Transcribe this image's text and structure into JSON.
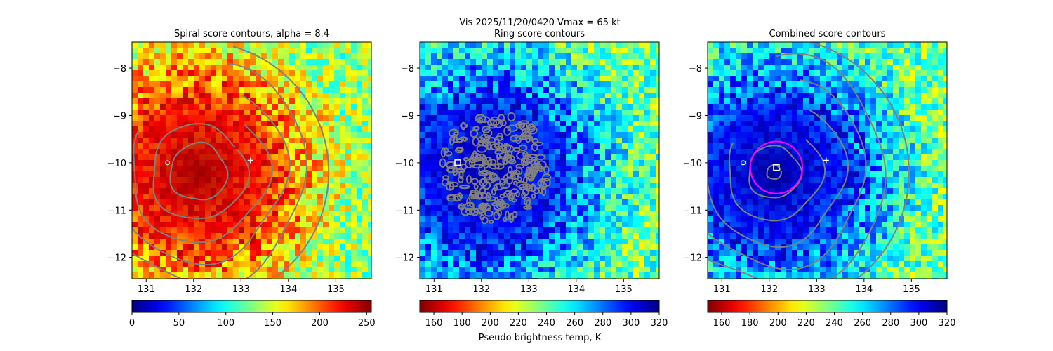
{
  "figure": {
    "suptitle": "Vis  2025/11/20/0420    Vmax = 65 kt",
    "colorbar_label": "Pseudo brightness temp, K"
  },
  "chart_data": [
    {
      "type": "heatmap",
      "title": "Spiral score contours, alpha =  8.4",
      "colormap": "jet",
      "colormap_reversed": false,
      "xlim": [
        130.7,
        135.75
      ],
      "ylim": [
        -12.45,
        -7.45
      ],
      "xticks": [
        131,
        132,
        133,
        134,
        135
      ],
      "yticks": [
        -8,
        -9,
        -10,
        -11,
        -12
      ],
      "colorbar": {
        "min": 0,
        "max": 255,
        "ticks": [
          0,
          50,
          100,
          150,
          200,
          250
        ]
      },
      "center": [
        132.1,
        -10.2
      ],
      "core_radius_deg": 1.6,
      "contour_radii_deg": [
        0.6,
        1.0,
        1.45,
        1.85,
        2.3
      ],
      "contour_color": "#808080",
      "markers": [
        {
          "kind": "plus",
          "x": 133.2,
          "y": -9.95,
          "color": "#ffffff"
        },
        {
          "kind": "circle",
          "x": 131.45,
          "y": -10.0,
          "color": "#ffffff"
        }
      ]
    },
    {
      "type": "heatmap",
      "title": "Ring score contours",
      "colormap": "jet",
      "colormap_reversed": true,
      "xlim": [
        130.7,
        135.75
      ],
      "ylim": [
        -12.45,
        -7.45
      ],
      "xticks": [
        131,
        132,
        133,
        134,
        135
      ],
      "yticks": [
        -8,
        -9,
        -10,
        -11,
        -12
      ],
      "colorbar": {
        "min": 150,
        "max": 320,
        "ticks": [
          160,
          180,
          200,
          220,
          240,
          260,
          280,
          300,
          320
        ]
      },
      "center": [
        132.1,
        -10.2
      ],
      "core_radius_deg": 1.6,
      "contour_radii_deg": [],
      "noisy_disk": {
        "x": 132.3,
        "y": -10.1,
        "r": 1.15
      },
      "contour_color": "#808080",
      "markers": [
        {
          "kind": "square",
          "x": 131.5,
          "y": -10.0,
          "color": "#ffffff"
        }
      ]
    },
    {
      "type": "heatmap",
      "title": "Combined score contours",
      "colormap": "jet",
      "colormap_reversed": true,
      "xlim": [
        130.7,
        135.75
      ],
      "ylim": [
        -12.45,
        -7.45
      ],
      "xticks": [
        131,
        132,
        133,
        134,
        135
      ],
      "yticks": [
        -8,
        -9,
        -10,
        -11,
        -12
      ],
      "colorbar": {
        "min": 150,
        "max": 320,
        "ticks": [
          160,
          180,
          200,
          220,
          240,
          260,
          280,
          300,
          320
        ]
      },
      "center": [
        132.1,
        -10.2
      ],
      "core_radius_deg": 1.6,
      "contour_radii_deg": [
        0.15,
        0.55,
        1.0,
        1.5,
        1.95,
        2.4
      ],
      "contour_color": "#808080",
      "magenta_circle": {
        "x": 132.15,
        "y": -10.1,
        "r": 0.55,
        "color": "#ff00ff"
      },
      "markers": [
        {
          "kind": "square",
          "x": 132.15,
          "y": -10.1,
          "color": "#ffffff"
        },
        {
          "kind": "plus",
          "x": 133.2,
          "y": -9.95,
          "color": "#ffffff"
        },
        {
          "kind": "circle",
          "x": 131.45,
          "y": -10.0,
          "color": "#ffffff"
        }
      ]
    }
  ]
}
